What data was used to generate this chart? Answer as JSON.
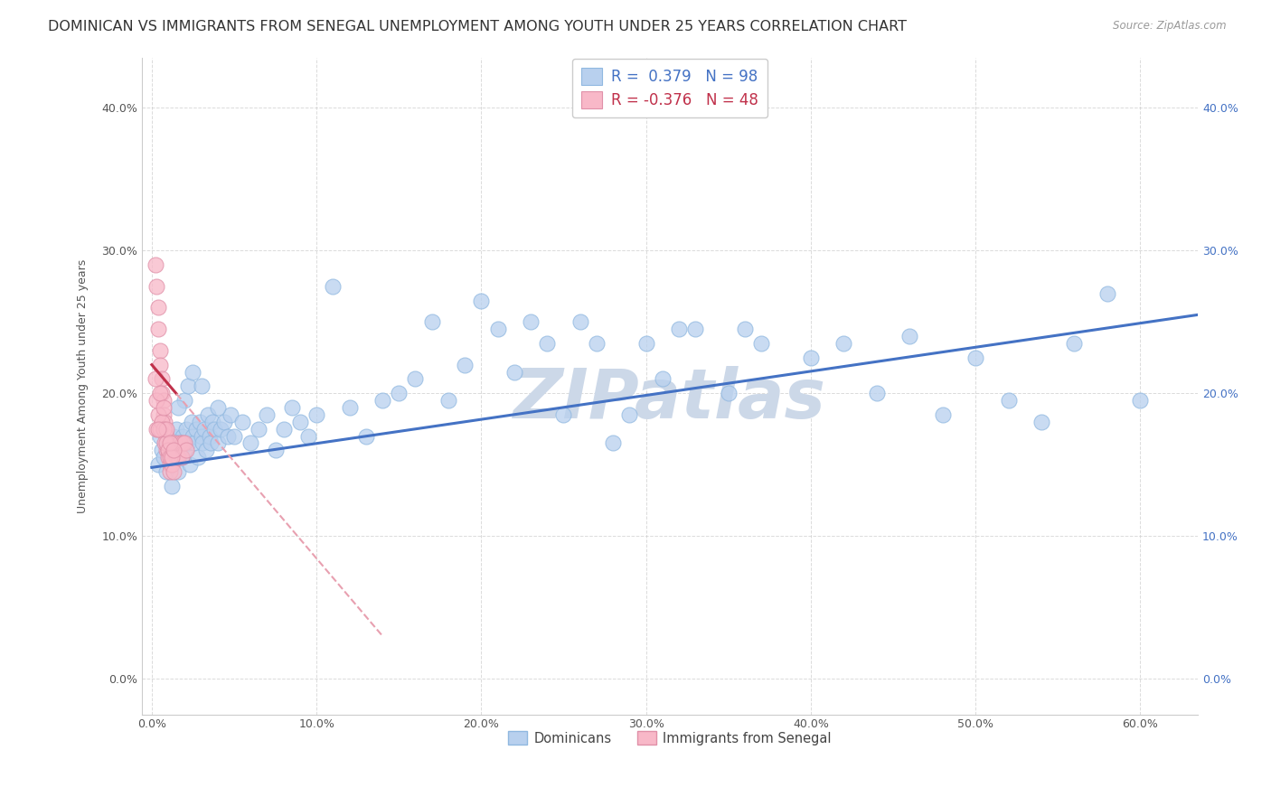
{
  "title": "DOMINICAN VS IMMIGRANTS FROM SENEGAL UNEMPLOYMENT AMONG YOUTH UNDER 25 YEARS CORRELATION CHART",
  "source": "Source: ZipAtlas.com",
  "ylabel": "Unemployment Among Youth under 25 years",
  "x_ticks": [
    0.0,
    0.1,
    0.2,
    0.3,
    0.4,
    0.5,
    0.6
  ],
  "x_tick_labels": [
    "0.0%",
    "10.0%",
    "20.0%",
    "30.0%",
    "40.0%",
    "50.0%",
    "60.0%"
  ],
  "y_ticks": [
    0.0,
    0.1,
    0.2,
    0.3,
    0.4
  ],
  "y_tick_labels": [
    "0.0%",
    "10.0%",
    "20.0%",
    "30.0%",
    "40.0%"
  ],
  "xlim": [
    -0.006,
    0.635
  ],
  "ylim": [
    -0.025,
    0.435
  ],
  "dominican_R": 0.379,
  "dominican_N": 98,
  "senegal_R": -0.376,
  "senegal_N": 48,
  "dot_color_dominican": "#b8d0ee",
  "dot_color_senegal": "#f8b8c8",
  "line_color_dominican": "#4472c4",
  "line_color_senegal": "#c0304a",
  "line_color_senegal_dash": "#e8a0b0",
  "watermark": "ZIPatlas",
  "watermark_color": "#ccd8e8",
  "legend_label_dominican": "Dominicans",
  "legend_label_senegal": "Immigrants from Senegal",
  "background_color": "#ffffff",
  "grid_color": "#cccccc",
  "title_fontsize": 11.5,
  "axis_label_fontsize": 9,
  "tick_fontsize": 9,
  "dominican_x": [
    0.004,
    0.005,
    0.006,
    0.007,
    0.008,
    0.009,
    0.01,
    0.011,
    0.012,
    0.013,
    0.014,
    0.015,
    0.015,
    0.016,
    0.017,
    0.018,
    0.019,
    0.02,
    0.021,
    0.022,
    0.023,
    0.024,
    0.025,
    0.026,
    0.027,
    0.028,
    0.029,
    0.03,
    0.031,
    0.032,
    0.033,
    0.034,
    0.035,
    0.036,
    0.037,
    0.038,
    0.04,
    0.042,
    0.044,
    0.046,
    0.048,
    0.05,
    0.055,
    0.06,
    0.065,
    0.07,
    0.075,
    0.08,
    0.085,
    0.09,
    0.095,
    0.1,
    0.11,
    0.12,
    0.13,
    0.14,
    0.15,
    0.16,
    0.17,
    0.18,
    0.19,
    0.2,
    0.21,
    0.22,
    0.23,
    0.24,
    0.25,
    0.26,
    0.27,
    0.28,
    0.29,
    0.3,
    0.31,
    0.32,
    0.33,
    0.35,
    0.36,
    0.37,
    0.4,
    0.42,
    0.44,
    0.46,
    0.48,
    0.5,
    0.52,
    0.54,
    0.56,
    0.58,
    0.6,
    0.02,
    0.015,
    0.018,
    0.022,
    0.025,
    0.012,
    0.016,
    0.03,
    0.04
  ],
  "dominican_y": [
    0.15,
    0.17,
    0.16,
    0.155,
    0.175,
    0.145,
    0.165,
    0.16,
    0.15,
    0.17,
    0.155,
    0.175,
    0.16,
    0.145,
    0.165,
    0.155,
    0.17,
    0.16,
    0.175,
    0.165,
    0.15,
    0.18,
    0.17,
    0.165,
    0.175,
    0.155,
    0.18,
    0.17,
    0.165,
    0.175,
    0.16,
    0.185,
    0.17,
    0.165,
    0.18,
    0.175,
    0.165,
    0.175,
    0.18,
    0.17,
    0.185,
    0.17,
    0.18,
    0.165,
    0.175,
    0.185,
    0.16,
    0.175,
    0.19,
    0.18,
    0.17,
    0.185,
    0.275,
    0.19,
    0.17,
    0.195,
    0.2,
    0.21,
    0.25,
    0.195,
    0.22,
    0.265,
    0.245,
    0.215,
    0.25,
    0.235,
    0.185,
    0.25,
    0.235,
    0.165,
    0.185,
    0.235,
    0.21,
    0.245,
    0.245,
    0.2,
    0.245,
    0.235,
    0.225,
    0.235,
    0.2,
    0.24,
    0.185,
    0.225,
    0.195,
    0.18,
    0.235,
    0.27,
    0.195,
    0.195,
    0.165,
    0.155,
    0.205,
    0.215,
    0.135,
    0.19,
    0.205,
    0.19
  ],
  "senegal_x": [
    0.002,
    0.003,
    0.004,
    0.004,
    0.005,
    0.005,
    0.006,
    0.006,
    0.007,
    0.007,
    0.008,
    0.008,
    0.009,
    0.009,
    0.01,
    0.01,
    0.011,
    0.011,
    0.012,
    0.012,
    0.013,
    0.013,
    0.014,
    0.015,
    0.016,
    0.017,
    0.018,
    0.019,
    0.02,
    0.021,
    0.003,
    0.004,
    0.005,
    0.006,
    0.007,
    0.008,
    0.009,
    0.01,
    0.011,
    0.012,
    0.003,
    0.005,
    0.007,
    0.009,
    0.011,
    0.013,
    0.002,
    0.004
  ],
  "senegal_y": [
    0.29,
    0.275,
    0.26,
    0.245,
    0.23,
    0.22,
    0.21,
    0.2,
    0.195,
    0.185,
    0.18,
    0.175,
    0.17,
    0.16,
    0.16,
    0.155,
    0.15,
    0.145,
    0.155,
    0.15,
    0.16,
    0.145,
    0.165,
    0.155,
    0.155,
    0.165,
    0.155,
    0.165,
    0.165,
    0.16,
    0.175,
    0.185,
    0.175,
    0.18,
    0.175,
    0.165,
    0.165,
    0.16,
    0.155,
    0.155,
    0.195,
    0.2,
    0.19,
    0.175,
    0.165,
    0.16,
    0.21,
    0.175
  ],
  "dom_trend_x0": 0.0,
  "dom_trend_x1": 0.635,
  "dom_trend_y0": 0.148,
  "dom_trend_y1": 0.255,
  "sen_trend_solid_x0": 0.0,
  "sen_trend_solid_x1": 0.015,
  "sen_trend_dash_x0": 0.015,
  "sen_trend_dash_x1": 0.14,
  "sen_trend_y0": 0.22,
  "sen_trend_y1": 0.03
}
